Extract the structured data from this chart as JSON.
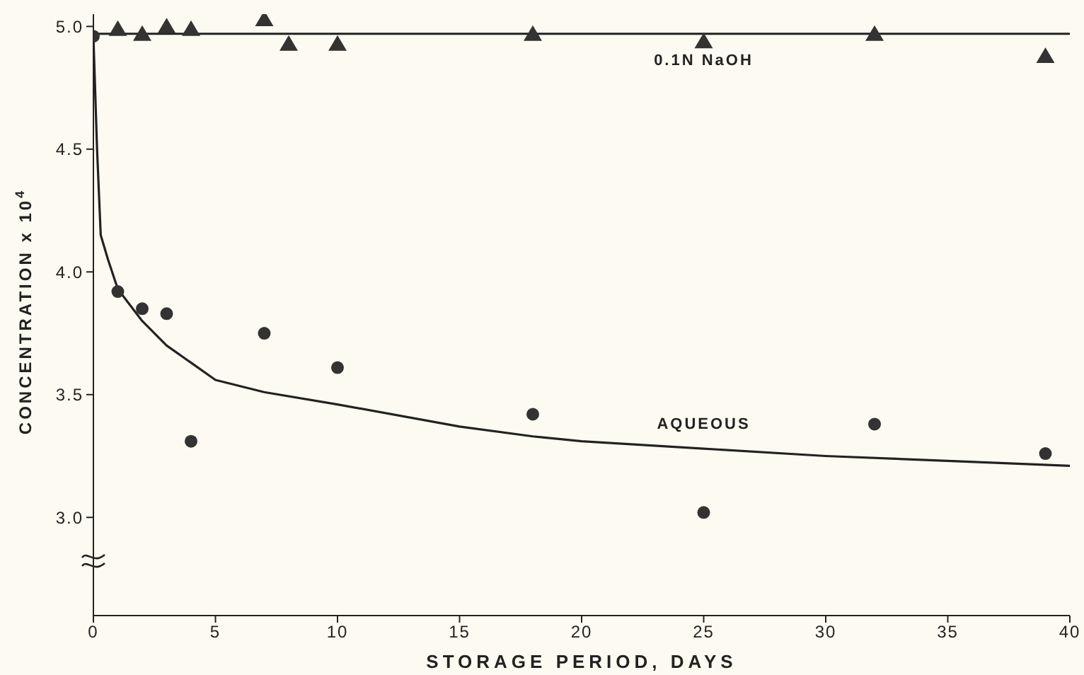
{
  "chart_data": {
    "type": "scatter",
    "xlabel": "STORAGE PERIOD, DAYS",
    "ylabel": "CONCENTRATION x 10$^{4}$",
    "xlim": [
      0,
      40
    ],
    "xticks": [
      0,
      5,
      10,
      15,
      20,
      25,
      30,
      35,
      40
    ],
    "ylim": [
      2.6,
      5.05
    ],
    "yticks": [
      {
        "value": 3,
        "label": "3.0"
      },
      {
        "value": 3.5,
        "label": "3.5"
      },
      {
        "value": 4,
        "label": "4.0"
      },
      {
        "value": 4.5,
        "label": "4.5"
      },
      {
        "value": 5,
        "label": "5.0"
      }
    ],
    "grid": false,
    "legend": false,
    "series": [
      {
        "marker": "triangle",
        "color": "#333333",
        "x": [
          1,
          2,
          3,
          4,
          7,
          8,
          10,
          18,
          25,
          32,
          39
        ],
        "values": [
          4.99,
          4.97,
          5.0,
          4.99,
          5.03,
          4.93,
          4.93,
          4.97,
          4.94,
          4.97,
          4.88
        ]
      },
      {
        "type": "line",
        "name": "0.1N NaOH",
        "marker": "none",
        "color": "#222222",
        "x": [
          0,
          40
        ],
        "values": [
          4.97,
          4.97
        ]
      },
      {
        "marker": "circle",
        "color": "#333333",
        "x": [
          0,
          1,
          2,
          3,
          4,
          7,
          10,
          18,
          25,
          32,
          39
        ],
        "values": [
          4.96,
          3.92,
          3.85,
          3.83,
          3.31,
          3.75,
          3.61,
          3.42,
          3.02,
          3.38,
          3.26
        ]
      },
      {
        "type": "line",
        "name": "AQUEOUS",
        "marker": "none",
        "color": "#222222",
        "x": [
          0,
          0.15,
          0.3,
          0.6,
          1,
          2,
          3,
          4,
          5,
          7,
          10,
          15,
          18,
          20,
          25,
          30,
          35,
          40
        ],
        "values": [
          4.96,
          4.5,
          4.15,
          4.05,
          3.93,
          3.8,
          3.7,
          3.63,
          3.56,
          3.51,
          3.46,
          3.37,
          3.33,
          3.31,
          3.28,
          3.25,
          3.23,
          3.21
        ]
      }
    ]
  }
}
